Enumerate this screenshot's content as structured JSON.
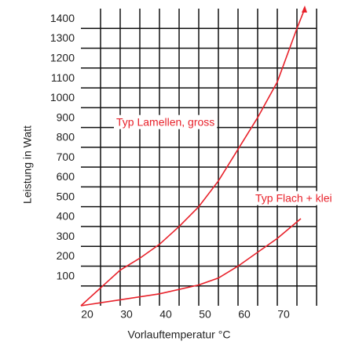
{
  "chart_data": {
    "type": "line",
    "xlabel": "Vorlauftemperatur °C",
    "ylabel": "Leistung in Watt",
    "xlim": [
      20,
      80
    ],
    "xticks": [
      20,
      30,
      40,
      50,
      60,
      70
    ],
    "xgrid": [
      25,
      30,
      35,
      40,
      45,
      50,
      55,
      60,
      65,
      70,
      75,
      80
    ],
    "ylim": [
      0,
      1500
    ],
    "yticks": [
      100,
      200,
      300,
      400,
      500,
      600,
      700,
      800,
      900,
      1000,
      1100,
      1200,
      1300,
      1400
    ],
    "grid": true,
    "annotations": [
      "Typ Lamellen, gross",
      "Typ Flach + klei"
    ],
    "series": [
      {
        "name": "Typ Lamellen, gross",
        "color": "#e8212a",
        "x": [
          20,
          30,
          35,
          40,
          45,
          50,
          55,
          60,
          65,
          70,
          75,
          77
        ],
        "values": [
          0,
          180,
          240,
          310,
          400,
          500,
          630,
          790,
          950,
          1130,
          1400,
          1500
        ]
      },
      {
        "name": "Typ Flach + klei",
        "color": "#e8212a",
        "x": [
          20,
          30,
          40,
          50,
          55,
          60,
          65,
          70,
          76
        ],
        "values": [
          0,
          30,
          60,
          105,
          140,
          200,
          270,
          340,
          440
        ]
      }
    ]
  }
}
